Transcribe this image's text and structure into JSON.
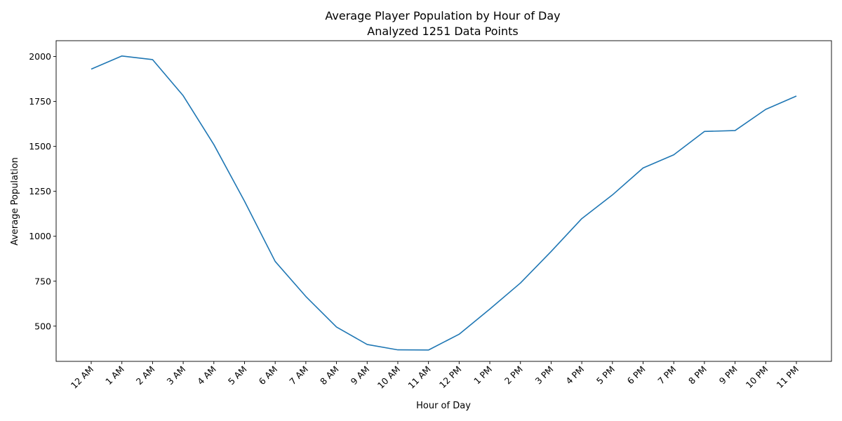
{
  "chart_data": {
    "type": "line",
    "title": "Average Player Population by Hour of Day",
    "subtitle": "Analyzed 1251 Data Points",
    "xlabel": "Hour of Day",
    "ylabel": "Average Population",
    "categories": [
      "12 AM",
      "1 AM",
      "2 AM",
      "3 AM",
      "4 AM",
      "5 AM",
      "6 AM",
      "7 AM",
      "8 AM",
      "9 AM",
      "10 AM",
      "11 AM",
      "12 PM",
      "1 PM",
      "2 PM",
      "3 PM",
      "4 PM",
      "5 PM",
      "6 PM",
      "7 PM",
      "8 PM",
      "9 PM",
      "10 PM",
      "11 PM"
    ],
    "values": [
      1930,
      2003,
      1983,
      1782,
      1510,
      1195,
      860,
      665,
      495,
      398,
      368,
      367,
      455,
      595,
      740,
      915,
      1098,
      1230,
      1380,
      1453,
      1583,
      1588,
      1706,
      1780
    ],
    "ylim": [
      304,
      2088
    ],
    "yticks": [
      500,
      750,
      1000,
      1250,
      1500,
      1750,
      2000
    ],
    "ytick_labels": [
      "500",
      "750",
      "1000",
      "1250",
      "1500",
      "1750",
      "2000"
    ],
    "grid": false,
    "legend": "none",
    "line_color": "#1f77b4"
  }
}
